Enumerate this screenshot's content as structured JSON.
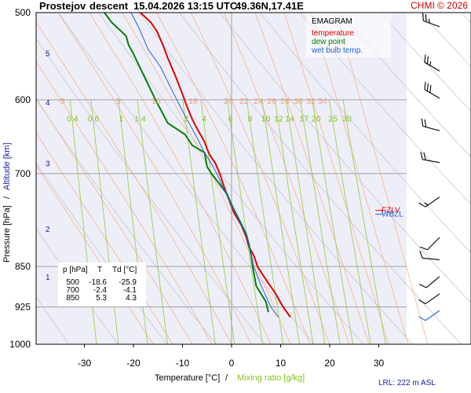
{
  "header": {
    "station": "Prostejov",
    "mode": "descent",
    "timestamp": "15.04.2026 13:15 UTC",
    "location": "49.36N,17.41E",
    "copyright": "CHMI © 2026"
  },
  "chart_data": {
    "type": "line",
    "title": "EMAGRAM",
    "xlabel_left": "Temperature [°C]",
    "xlabel_sep": "/",
    "xlabel_right": "Mixing ratio [g/kg]",
    "ylabel_left": "Pressure [hPa]",
    "ylabel_sep": "/",
    "ylabel_right": "Altitude [km]",
    "xlim": [
      -40,
      40
    ],
    "ylim_pressure": [
      1000,
      500
    ],
    "y_scale": "log",
    "grid": true,
    "x_ticks": [
      "-30",
      "-20",
      "-10",
      "0",
      "10",
      "20",
      "30"
    ],
    "x_tick_values": [
      -30,
      -20,
      -10,
      0,
      10,
      20,
      30
    ],
    "p_ticks": [
      "500",
      "600",
      "700",
      "850",
      "925",
      "1000"
    ],
    "p_tick_values": [
      500,
      600,
      700,
      850,
      925,
      1000
    ],
    "alt_ticks": [
      "5",
      "4",
      "3",
      "2",
      "1"
    ],
    "alt_tick_pressures": [
      545,
      604,
      686,
      787,
      870
    ],
    "mixing_ratio_labels": [
      "0.4",
      "0.6",
      "1",
      "1.4",
      "3",
      "4",
      "6",
      "8",
      "10",
      "12",
      "14",
      "17",
      "20",
      "25",
      "30"
    ],
    "mixing_ratio_values": [
      0.4,
      0.6,
      1,
      1.4,
      3,
      4,
      6,
      8,
      10,
      12,
      14,
      17,
      20,
      25,
      30
    ],
    "isotherm_top_labels": [
      "-5",
      "5",
      "10",
      "16",
      "20",
      "22",
      "24",
      "26",
      "28",
      "30",
      "32",
      "34"
    ],
    "legend": [
      {
        "name": "EMAGRAM",
        "color": "#000000"
      },
      {
        "name": "temperature",
        "color": "#e00000"
      },
      {
        "name": "dew point",
        "color": "#008000"
      },
      {
        "name": "wet bulb temp.",
        "color": "#1e64dc"
      }
    ],
    "legend_position": "top-right",
    "markers": [
      {
        "label": "FZLV",
        "pressure": 756,
        "color": "#e00000"
      },
      {
        "label": "WBZL",
        "pressure": 762,
        "color": "#1e64dc"
      }
    ],
    "table": {
      "headers": [
        "p [hPa]",
        "T",
        "Td [°C]"
      ],
      "rows": [
        [
          "500",
          "-18.6",
          "-25.9"
        ],
        [
          "700",
          "-2.4",
          "-4.1"
        ],
        [
          "850",
          "5.3",
          "4.3"
        ]
      ]
    },
    "lrl": "LRL: 222 m ASL",
    "series": [
      {
        "name": "temperature",
        "color": "#e00000",
        "x": [
          12.0,
          10.5,
          9.0,
          7.5,
          6.0,
          5.3,
          4.5,
          3.5,
          3.0,
          2.0,
          0.5,
          -0.5,
          -1.5,
          -2.4,
          -3.3,
          -4.3,
          -5.0,
          -5.5,
          -6.8,
          -8.0,
          -9.0,
          -10.2,
          -11.5,
          -13.0,
          -14.0,
          -15.2,
          -16.5,
          -18.6
        ],
        "y": [
          945,
          925,
          900,
          880,
          860,
          850,
          830,
          815,
          800,
          780,
          760,
          740,
          720,
          700,
          685,
          675,
          665,
          655,
          640,
          625,
          610,
          590,
          570,
          550,
          535,
          520,
          510,
          500
        ]
      },
      {
        "name": "dew point",
        "color": "#008000",
        "x": [
          7.5,
          7.0,
          6.0,
          5.0,
          4.6,
          4.3,
          4.0,
          3.5,
          3.0,
          1.5,
          0.5,
          -1.0,
          -2.5,
          -4.1,
          -5.0,
          -5.5,
          -8.0,
          -9.5,
          -13.0,
          -15.5,
          -17.5,
          -20.0,
          -21.0,
          -21.5,
          -22.5,
          -24.5,
          -25.9
        ],
        "y": [
          935,
          915,
          900,
          885,
          865,
          850,
          830,
          810,
          795,
          770,
          755,
          730,
          715,
          700,
          690,
          670,
          660,
          645,
          630,
          600,
          575,
          545,
          535,
          525,
          520,
          510,
          500
        ]
      },
      {
        "name": "wet bulb temp.",
        "color": "#1e64dc",
        "x": [
          9.5,
          8.0,
          6.8,
          5.8,
          5.0,
          4.5,
          4.0,
          3.2,
          2.0,
          0.8,
          -0.5,
          -1.8,
          -3.0,
          -4.2,
          -5.5,
          -7.0,
          -9.5,
          -12.0,
          -14.5,
          -17.0,
          -19.0,
          -20.5
        ],
        "y": [
          945,
          925,
          900,
          880,
          860,
          850,
          830,
          800,
          780,
          760,
          740,
          720,
          700,
          685,
          670,
          650,
          620,
          590,
          560,
          540,
          515,
          500
        ]
      }
    ],
    "wind_barbs": [
      {
        "pressure": 515,
        "direction_deg": 290,
        "speed_kt": 25
      },
      {
        "pressure": 565,
        "direction_deg": 300,
        "speed_kt": 25
      },
      {
        "pressure": 598,
        "direction_deg": 300,
        "speed_kt": 30
      },
      {
        "pressure": 640,
        "direction_deg": 285,
        "speed_kt": 20
      },
      {
        "pressure": 684,
        "direction_deg": 280,
        "speed_kt": 20
      },
      {
        "pressure": 735,
        "direction_deg": 235,
        "speed_kt": 15
      },
      {
        "pressure": 800,
        "direction_deg": 225,
        "speed_kt": 10
      },
      {
        "pressure": 838,
        "direction_deg": 275,
        "speed_kt": 10
      },
      {
        "pressure": 868,
        "direction_deg": 230,
        "speed_kt": 10
      },
      {
        "pressure": 900,
        "direction_deg": 235,
        "speed_kt": 10
      },
      {
        "pressure": 932,
        "direction_deg": 235,
        "speed_kt": 10,
        "color": "#1e64dc"
      }
    ]
  }
}
